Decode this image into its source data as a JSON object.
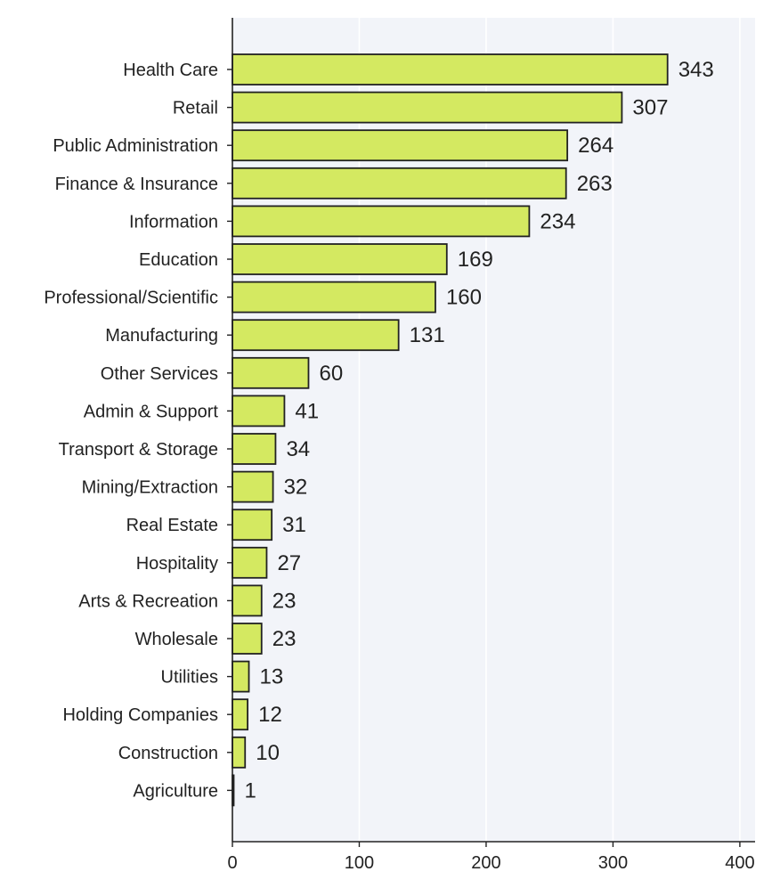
{
  "colors": {
    "bar_fill": "#d4e961",
    "bar_edge": "#222222",
    "plot_background": "#f2f4f9",
    "grid": "#ffffff",
    "axis": "#222222"
  },
  "chart_data": {
    "type": "bar",
    "orientation": "horizontal",
    "title": "",
    "xlabel": "",
    "ylabel": "",
    "categories": [
      "Health Care",
      "Retail",
      "Public Administration",
      "Finance & Insurance",
      "Information",
      "Education",
      "Professional/Scientific",
      "Manufacturing",
      "Other Services",
      "Admin & Support",
      "Transport & Storage",
      "Mining/Extraction",
      "Real Estate",
      "Hospitality",
      "Arts & Recreation",
      "Wholesale",
      "Utilities",
      "Holding Companies",
      "Construction",
      "Agriculture"
    ],
    "values": [
      343,
      307,
      264,
      263,
      234,
      169,
      160,
      131,
      60,
      41,
      34,
      32,
      31,
      27,
      23,
      23,
      13,
      12,
      10,
      1
    ],
    "data_labels": [
      "343",
      "307",
      "264",
      "263",
      "234",
      "169",
      "160",
      "131",
      "60",
      "41",
      "34",
      "32",
      "31",
      "27",
      "23",
      "23",
      "13",
      "12",
      "10",
      "1"
    ],
    "xlim": [
      0,
      412
    ],
    "x_ticks": [
      0,
      100,
      200,
      300,
      400
    ],
    "x_tick_labels": [
      "0",
      "100",
      "200",
      "300",
      "400"
    ],
    "grid": true
  }
}
